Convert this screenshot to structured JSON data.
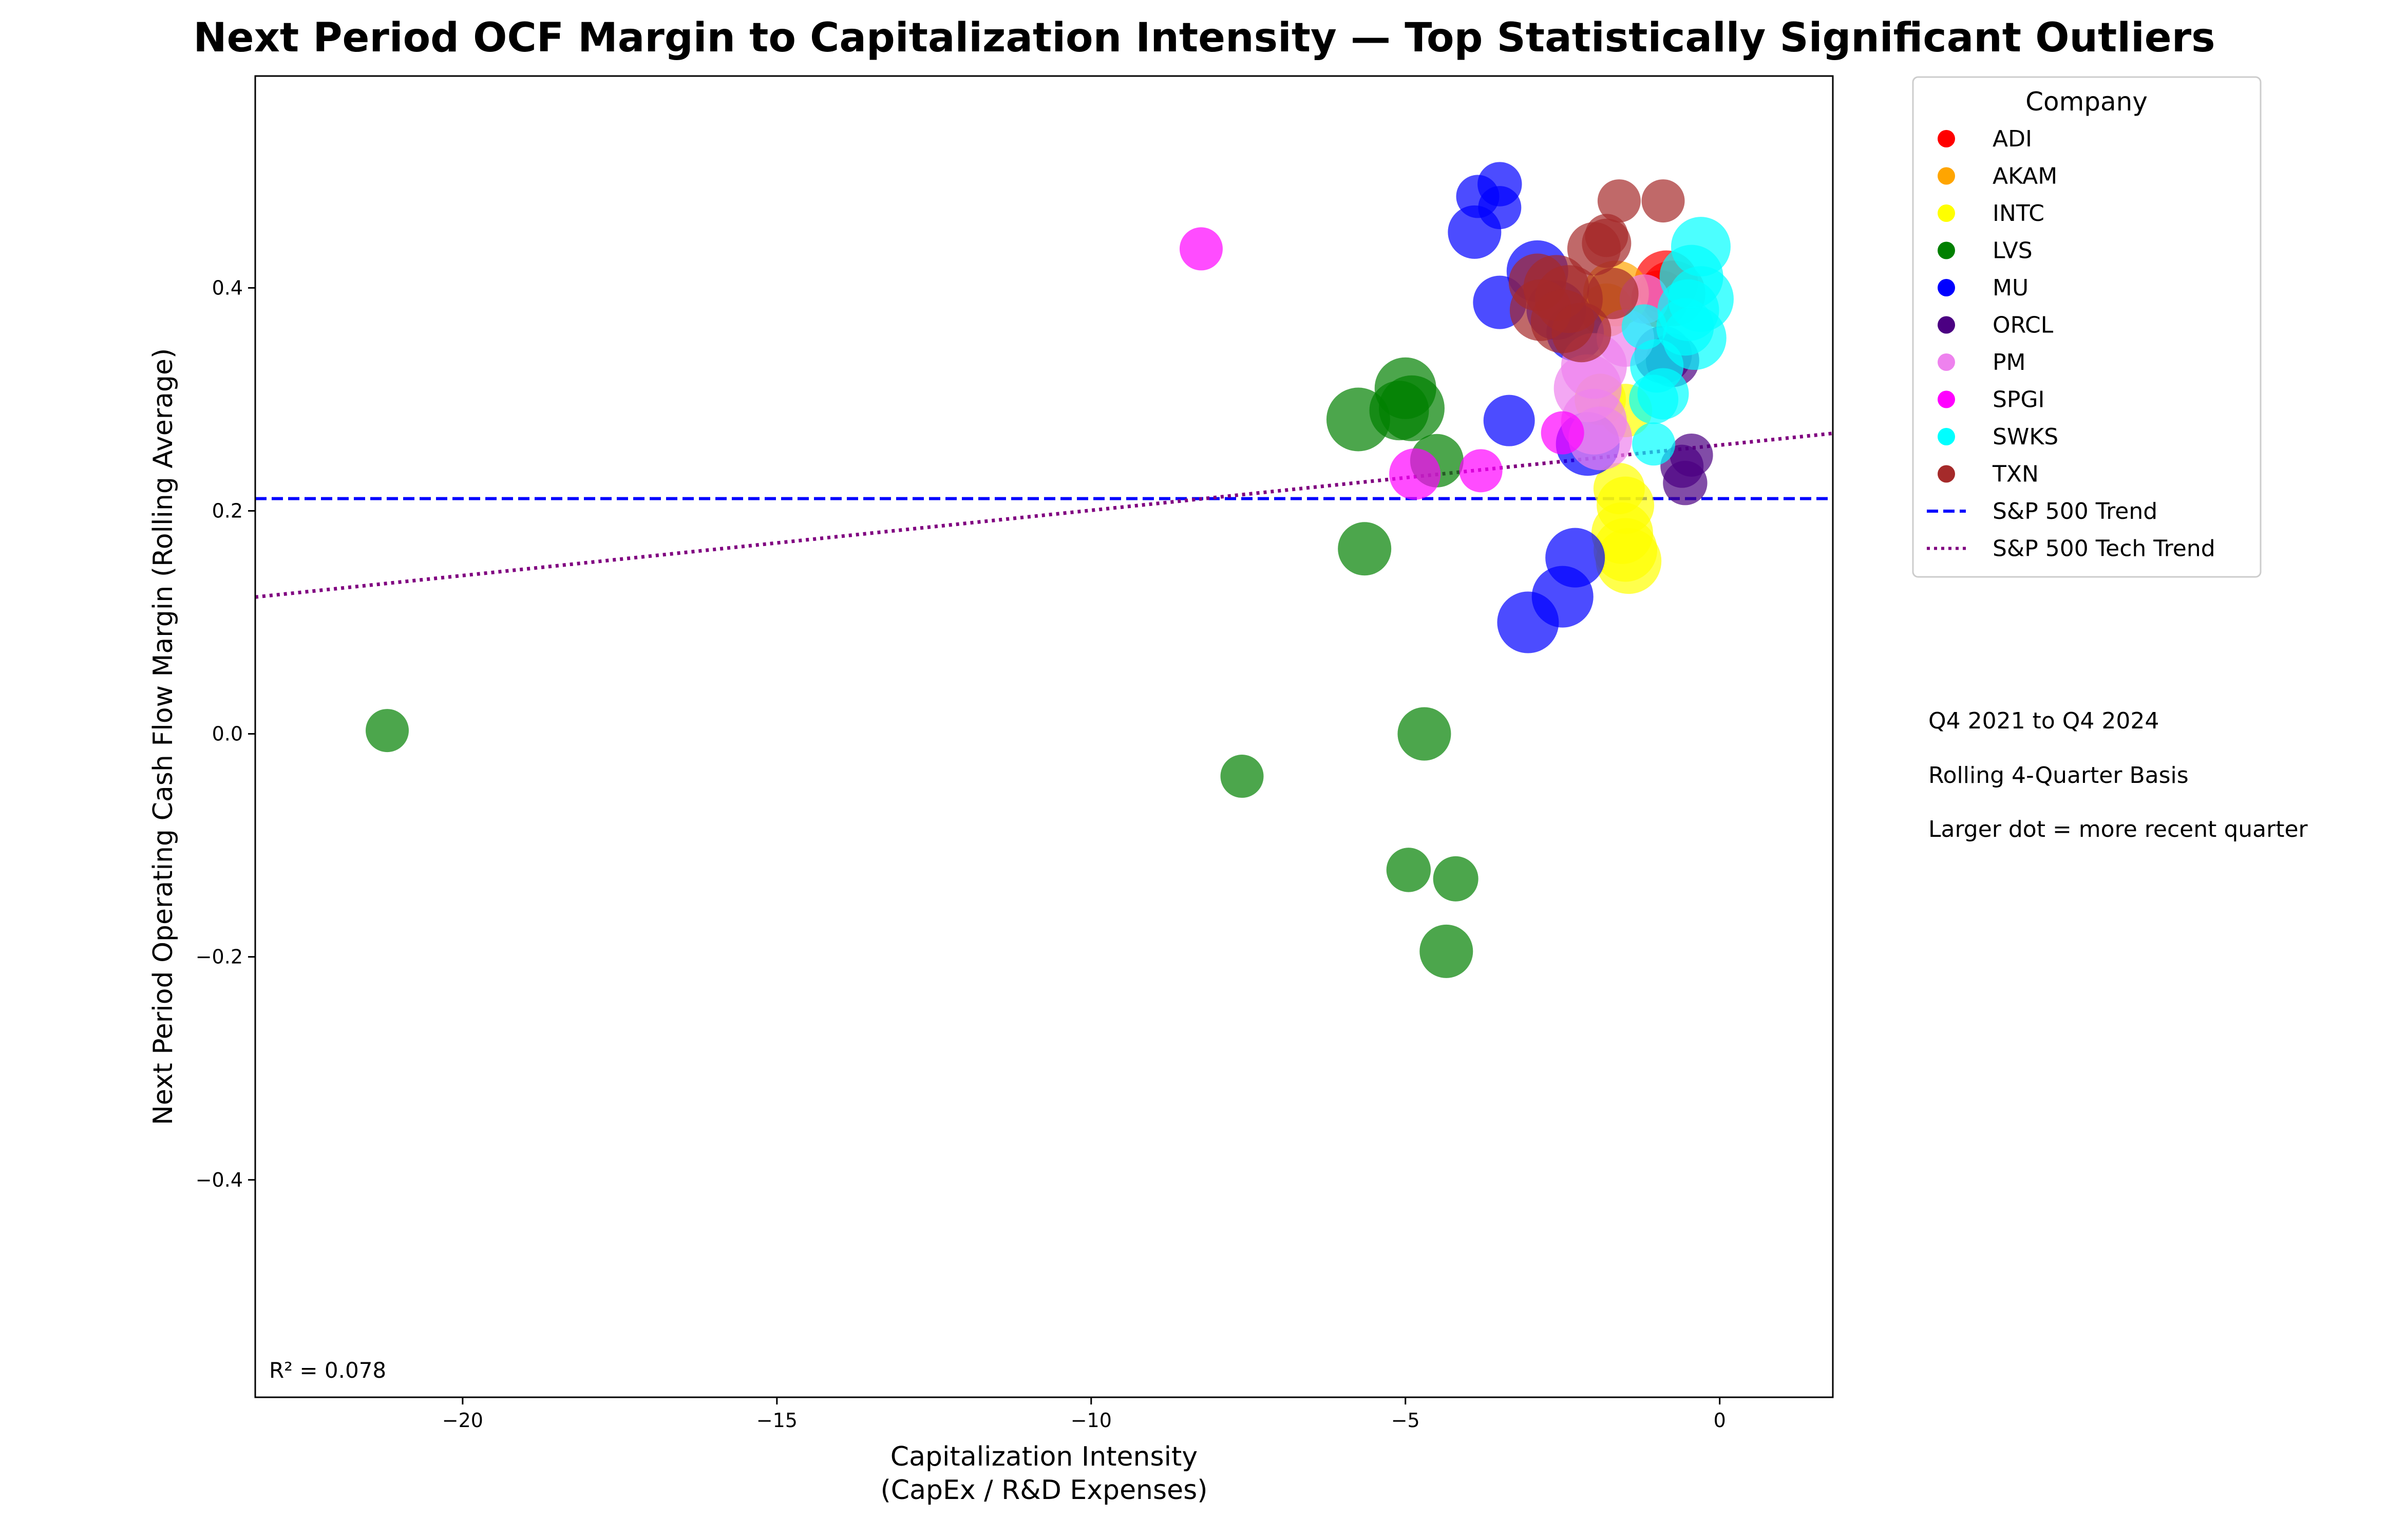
{
  "chart_data": {
    "type": "scatter",
    "title": "Next Period OCF Margin to Capitalization Intensity — Top Statistically Significant Outliers",
    "xlabel_line1": "Capitalization Intensity",
    "xlabel_line2": "(CapEx / R&D Expenses)",
    "ylabel": "Next Period Operating Cash Flow Margin (Rolling Average)",
    "xlim": [
      -23.3,
      1.8
    ],
    "ylim": [
      -0.595,
      0.59
    ],
    "x_ticks": [
      -20,
      -15,
      -10,
      -5,
      0
    ],
    "x_tick_labels": [
      "−20",
      "−15",
      "−10",
      "−5",
      "0"
    ],
    "y_ticks": [
      -0.4,
      -0.2,
      0.0,
      0.2,
      0.4
    ],
    "y_tick_labels": [
      "−0.4",
      "−0.2",
      "0.0",
      "0.2",
      "0.4"
    ],
    "grid": false,
    "legend_title": "Company",
    "legend_position": "outside-right",
    "r_squared_text": "R² = 0.078",
    "annotations": [
      "Q4 2021 to Q4 2024",
      "Rolling 4-Quarter Basis",
      "Larger dot = more recent quarter"
    ],
    "trend_lines": [
      {
        "name": "S&P 500 Trend",
        "color": "#0000ff",
        "style": "dashed",
        "intercept": 0.211,
        "slope": 0.0
      },
      {
        "name": "S&P 500 Tech Trend",
        "color": "#800080",
        "style": "dotted",
        "intercept": 0.259,
        "slope": 0.00585
      }
    ],
    "series": [
      {
        "name": "ADI",
        "color": "#ff0000",
        "points": [
          [
            -0.85,
            0.405,
            0.85
          ],
          [
            -0.75,
            0.395,
            0.9
          ],
          [
            -0.95,
            0.39,
            0.7
          ]
        ]
      },
      {
        "name": "AKAM",
        "color": "#ffa500",
        "points": [
          [
            -1.65,
            0.395,
            0.9
          ],
          [
            -1.8,
            0.38,
            0.6
          ]
        ]
      },
      {
        "name": "INTC",
        "color": "#ffff00",
        "points": [
          [
            -1.9,
            0.3,
            0.55
          ],
          [
            -1.5,
            0.29,
            0.6
          ],
          [
            -1.6,
            0.22,
            0.55
          ],
          [
            -1.5,
            0.205,
            0.7
          ],
          [
            -1.55,
            0.18,
            0.8
          ],
          [
            -1.5,
            0.165,
            0.85
          ],
          [
            -1.45,
            0.155,
            0.9
          ]
        ]
      },
      {
        "name": "LVS",
        "color": "#008000",
        "points": [
          [
            -21.2,
            0.003,
            0.35
          ],
          [
            -7.6,
            -0.038,
            0.35
          ],
          [
            -4.95,
            -0.122,
            0.38
          ],
          [
            -4.2,
            -0.13,
            0.4
          ],
          [
            -4.35,
            -0.195,
            0.6
          ],
          [
            -4.7,
            0.0,
            0.6
          ],
          [
            -5.65,
            0.166,
            0.6
          ],
          [
            -4.5,
            0.245,
            0.6
          ],
          [
            -5.75,
            0.282,
            0.85
          ],
          [
            -5.1,
            0.29,
            0.75
          ],
          [
            -4.9,
            0.292,
            0.9
          ],
          [
            -5.0,
            0.31,
            0.8
          ]
        ]
      },
      {
        "name": "MU",
        "color": "#0000ff",
        "points": [
          [
            -3.5,
            0.493,
            0.38
          ],
          [
            -3.85,
            0.482,
            0.35
          ],
          [
            -3.5,
            0.472,
            0.35
          ],
          [
            -3.9,
            0.45,
            0.6
          ],
          [
            -3.5,
            0.387,
            0.6
          ],
          [
            -3.35,
            0.281,
            0.55
          ],
          [
            -2.9,
            0.415,
            0.8
          ],
          [
            -2.6,
            0.38,
            0.75
          ],
          [
            -2.3,
            0.36,
            0.7
          ],
          [
            -2.1,
            0.26,
            0.85
          ],
          [
            -2.3,
            0.158,
            0.75
          ],
          [
            -2.5,
            0.123,
            0.8
          ],
          [
            -3.05,
            0.1,
            0.8
          ]
        ]
      },
      {
        "name": "ORCL",
        "color": "#4b0082",
        "points": [
          [
            -0.9,
            0.34,
            0.7
          ],
          [
            -0.75,
            0.335,
            0.6
          ],
          [
            -0.45,
            0.25,
            0.35
          ],
          [
            -0.6,
            0.24,
            0.35
          ],
          [
            -0.55,
            0.225,
            0.38
          ]
        ]
      },
      {
        "name": "PM",
        "color": "#ee82ee",
        "points": [
          [
            -1.2,
            0.39,
            0.5
          ],
          [
            -1.5,
            0.355,
            0.7
          ],
          [
            -2.0,
            0.33,
            0.9
          ],
          [
            -2.1,
            0.31,
            0.95
          ],
          [
            -2.0,
            0.28,
            0.9
          ],
          [
            -1.9,
            0.265,
            0.85
          ]
        ]
      },
      {
        "name": "SPGI",
        "color": "#ff00ff",
        "points": [
          [
            -8.25,
            0.435,
            0.35
          ],
          [
            -4.85,
            0.233,
            0.55
          ],
          [
            -3.8,
            0.236,
            0.35
          ],
          [
            -2.5,
            0.27,
            0.35
          ]
        ]
      },
      {
        "name": "SWKS",
        "color": "#00ffff",
        "points": [
          [
            -0.3,
            0.437,
            0.75
          ],
          [
            -0.45,
            0.41,
            0.85
          ],
          [
            -0.3,
            0.39,
            0.9
          ],
          [
            -0.5,
            0.38,
            0.8
          ],
          [
            -0.55,
            0.365,
            0.7
          ],
          [
            -0.4,
            0.355,
            0.85
          ],
          [
            -1.0,
            0.33,
            0.6
          ],
          [
            -1.2,
            0.365,
            0.4
          ],
          [
            -0.9,
            0.305,
            0.55
          ],
          [
            -1.05,
            0.3,
            0.5
          ],
          [
            -1.05,
            0.26,
            0.35
          ]
        ]
      },
      {
        "name": "TXN",
        "color": "#a52a2a",
        "points": [
          [
            -1.6,
            0.478,
            0.35
          ],
          [
            -0.9,
            0.478,
            0.35
          ],
          [
            -1.8,
            0.447,
            0.35
          ],
          [
            -1.8,
            0.44,
            0.5
          ],
          [
            -2.0,
            0.435,
            0.6
          ],
          [
            -1.7,
            0.395,
            0.55
          ],
          [
            -2.9,
            0.405,
            0.7
          ],
          [
            -2.6,
            0.4,
            0.9
          ],
          [
            -2.4,
            0.39,
            0.95
          ],
          [
            -2.85,
            0.38,
            0.8
          ],
          [
            -2.5,
            0.37,
            0.85
          ],
          [
            -2.2,
            0.36,
            0.75
          ]
        ]
      }
    ]
  }
}
